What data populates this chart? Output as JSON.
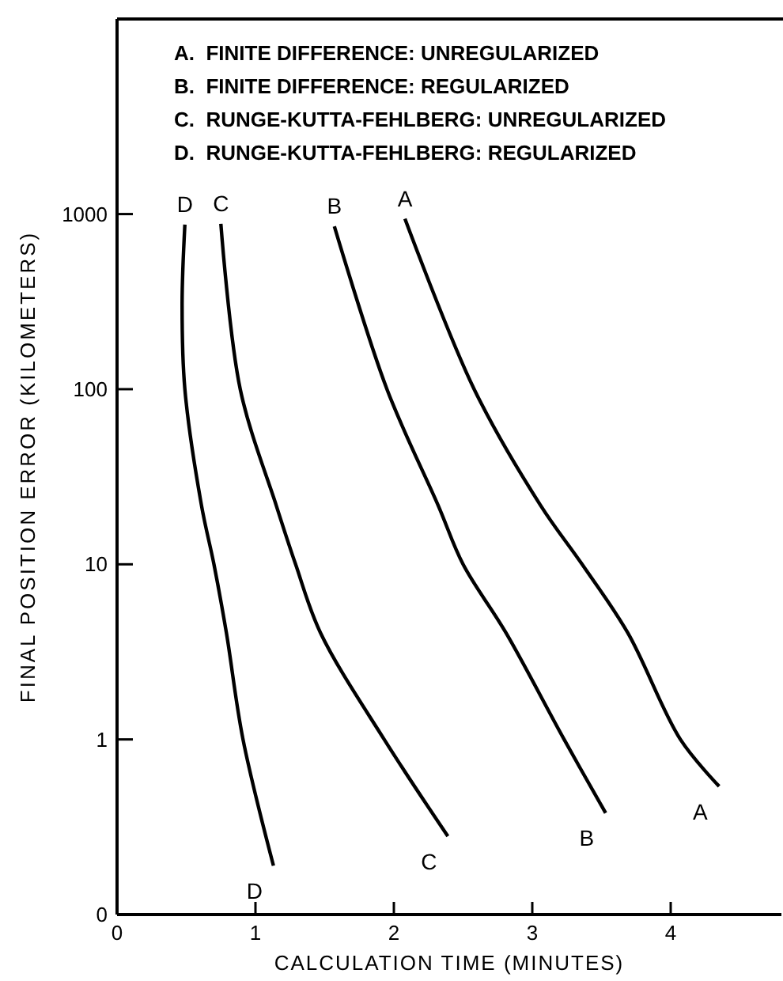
{
  "chart_data": {
    "type": "line",
    "xlabel": "CALCULATION TIME (MINUTES)",
    "ylabel": "FINAL POSITION ERROR (KILOMETERS)",
    "log": "y",
    "xlim": [
      0,
      4.8
    ],
    "xticks": [
      0,
      1,
      2,
      3,
      4
    ],
    "ylim": [
      0.1,
      13000
    ],
    "yticks": [
      {
        "value": 0.1,
        "label": "0"
      },
      1,
      10,
      100,
      1000
    ],
    "grid": false,
    "marker": "none",
    "line_style": "solid",
    "series": [
      {
        "name": "A",
        "color": "#000000",
        "x": [
          2.08,
          2.58,
          3.06,
          3.36,
          3.69,
          4.07,
          4.35
        ],
        "values": [
          940,
          100,
          21.7,
          10,
          4.06,
          1,
          0.54
        ]
      },
      {
        "name": "B",
        "color": "#000000",
        "x": [
          1.57,
          1.95,
          2.32,
          2.5,
          2.81,
          3.23,
          3.53
        ],
        "values": [
          850,
          100,
          21.7,
          10,
          4.06,
          1,
          0.38
        ]
      },
      {
        "name": "C",
        "color": "#000000",
        "x": [
          0.75,
          0.89,
          1.15,
          1.29,
          1.47,
          1.93,
          2.39
        ],
        "values": [
          880,
          100,
          21.7,
          10,
          4.06,
          1,
          0.28
        ]
      },
      {
        "name": "D",
        "color": "#000000",
        "x": [
          0.49,
          0.47,
          0.49,
          0.61,
          0.7,
          0.79,
          0.91,
          1.13
        ],
        "values": [
          870,
          310,
          100,
          21.7,
          10,
          4.06,
          1,
          0.19
        ]
      }
    ],
    "annotations": [
      "A.  FINITE DIFFERENCE: UNREGULARIZED",
      "B.  FINITE DIFFERENCE: REGULARIZED",
      "C.  RUNGE-KUTTA-FEHLBERG: UNREGULARIZED",
      "D.  RUNGE-KUTTA-FEHLBERG: REGULARIZED",
      {
        "text": "A",
        "x": 4.35,
        "y": 0.54
      },
      {
        "text": "B",
        "x": 3.53,
        "y": 0.38
      },
      {
        "text": "C",
        "x": 2.39,
        "y": 0.28
      },
      {
        "text": "D",
        "x": 1.13,
        "y": 0.19
      }
    ]
  }
}
